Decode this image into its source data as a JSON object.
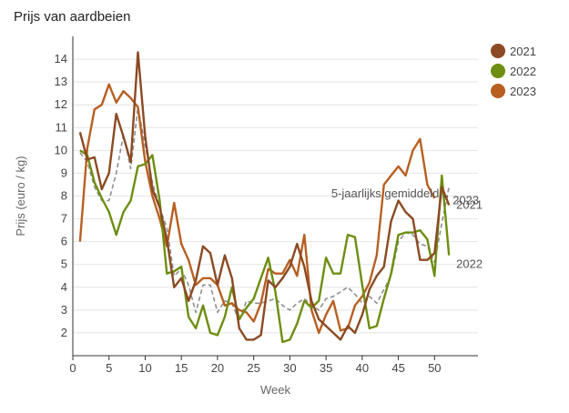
{
  "chart_data": {
    "type": "line",
    "title": "Prijs van aardbeien",
    "xlabel": "Week",
    "ylabel": "Prijs (euro / kg)",
    "xlim": [
      0,
      56
    ],
    "ylim": [
      1,
      15
    ],
    "xticks": [
      0,
      5,
      10,
      15,
      20,
      25,
      30,
      35,
      40,
      45,
      50
    ],
    "yticks": [
      2,
      3,
      4,
      5,
      6,
      7,
      8,
      9,
      10,
      11,
      12,
      13,
      14
    ],
    "grid": "horizontal",
    "legend": "right",
    "series": [
      {
        "name": "2021",
        "color": "#8b4a22",
        "x": [
          1,
          2,
          3,
          4,
          5,
          6,
          7,
          8,
          9,
          10,
          11,
          12,
          13,
          14,
          15,
          16,
          17,
          18,
          19,
          20,
          21,
          22,
          23,
          24,
          25,
          26,
          27,
          28,
          29,
          30,
          31,
          32,
          33,
          34,
          35,
          36,
          37,
          38,
          39,
          40,
          41,
          42,
          43,
          44,
          45,
          46,
          47,
          48,
          49,
          50,
          51,
          52
        ],
        "y": [
          10.8,
          9.6,
          9.7,
          8.3,
          9.0,
          11.6,
          10.6,
          9.5,
          14.3,
          10.6,
          8.3,
          7.5,
          6.1,
          4.0,
          4.4,
          3.4,
          4.3,
          5.8,
          5.5,
          4.1,
          5.4,
          4.4,
          2.2,
          1.7,
          1.7,
          1.9,
          4.3,
          4.0,
          4.4,
          4.9,
          5.9,
          4.9,
          3.4,
          2.6,
          2.3,
          2.0,
          1.7,
          2.3,
          2.0,
          2.8,
          3.9,
          4.5,
          4.9,
          6.9,
          7.8,
          7.3,
          7.0,
          5.2,
          5.2,
          5.5,
          8.4,
          7.6
        ]
      },
      {
        "name": "2022",
        "color": "#6d8e10",
        "x": [
          1,
          2,
          3,
          4,
          5,
          6,
          7,
          8,
          9,
          10,
          11,
          12,
          13,
          14,
          15,
          16,
          17,
          18,
          19,
          20,
          21,
          22,
          23,
          24,
          25,
          26,
          27,
          28,
          29,
          30,
          31,
          32,
          33,
          34,
          35,
          36,
          37,
          38,
          39,
          40,
          41,
          42,
          43,
          44,
          45,
          46,
          47,
          48,
          49,
          50,
          51,
          52
        ],
        "y": [
          10.0,
          9.8,
          8.6,
          7.9,
          7.3,
          6.3,
          7.3,
          7.8,
          9.3,
          9.4,
          9.8,
          7.8,
          4.6,
          4.7,
          4.9,
          2.7,
          2.2,
          3.2,
          2.0,
          1.9,
          2.7,
          4.0,
          2.6,
          3.1,
          3.5,
          4.4,
          5.3,
          3.8,
          1.6,
          1.7,
          2.4,
          3.4,
          3.1,
          3.4,
          5.3,
          4.6,
          4.6,
          6.3,
          6.2,
          4.1,
          2.2,
          2.3,
          3.5,
          4.6,
          6.3,
          6.4,
          6.4,
          6.5,
          6.1,
          4.5,
          8.9,
          5.4
        ]
      },
      {
        "name": "2023",
        "color": "#b85f22",
        "x": [
          1,
          2,
          3,
          4,
          5,
          6,
          7,
          8,
          9,
          10,
          11,
          12,
          13,
          14,
          15,
          16,
          17,
          18,
          19,
          20,
          21,
          22,
          23,
          24,
          25,
          26,
          27,
          28,
          29,
          30,
          31,
          32,
          33,
          34,
          35,
          36,
          37,
          38,
          39,
          40,
          41,
          42,
          43,
          44,
          45,
          46,
          47,
          48,
          49,
          50
        ],
        "y": [
          6.0,
          10.1,
          11.8,
          12.0,
          12.9,
          12.1,
          12.6,
          12.3,
          11.9,
          9.5,
          8.0,
          7.0,
          5.8,
          7.7,
          5.9,
          5.2,
          4.1,
          4.4,
          4.4,
          4.1,
          3.2,
          3.3,
          3.0,
          2.9,
          2.5,
          3.3,
          4.8,
          4.6,
          4.6,
          5.2,
          4.5,
          6.3,
          3.0,
          2.0,
          2.8,
          3.4,
          2.1,
          2.2,
          3.2,
          3.6,
          4.2,
          5.4,
          8.5,
          8.9,
          9.3,
          8.9,
          10.0,
          10.5,
          8.5,
          7.9
        ]
      },
      {
        "name": "5-jaarlijks gemiddeld...",
        "color": "#909090",
        "dashed": true,
        "x": [
          1,
          2,
          3,
          4,
          5,
          6,
          7,
          8,
          9,
          10,
          11,
          12,
          13,
          14,
          15,
          16,
          17,
          18,
          19,
          20,
          21,
          22,
          23,
          24,
          25,
          26,
          27,
          28,
          29,
          30,
          31,
          32,
          33,
          34,
          35,
          36,
          37,
          38,
          39,
          40,
          41,
          42,
          43,
          44,
          45,
          46,
          47,
          48,
          49,
          50,
          51,
          52
        ],
        "y": [
          9.9,
          9.5,
          8.4,
          7.8,
          7.8,
          9.0,
          10.7,
          9.2,
          11.9,
          10.2,
          8.6,
          7.5,
          6.6,
          4.5,
          4.8,
          4.1,
          2.9,
          4.1,
          4.1,
          2.9,
          3.4,
          3.3,
          2.5,
          3.4,
          3.3,
          3.3,
          3.4,
          3.5,
          3.2,
          3.0,
          3.3,
          3.5,
          3.2,
          3.0,
          3.5,
          3.6,
          3.8,
          4.0,
          3.7,
          3.3,
          3.6,
          3.3,
          3.9,
          4.5,
          6.0,
          6.4,
          6.3,
          5.9,
          5.8,
          5.1,
          6.8,
          8.4
        ]
      }
    ],
    "annotations": [
      {
        "text": "5-jaarlijks gemiddeld...",
        "x": 52,
        "y": 8.1,
        "anchor": "end",
        "color": "#555555"
      },
      {
        "text": "2023",
        "x": 52.5,
        "y": 7.8,
        "anchor": "start",
        "color": "#b0b0b0"
      },
      {
        "text": "2021",
        "x": 53,
        "y": 7.6,
        "anchor": "start",
        "color": "#555555"
      },
      {
        "text": "2022",
        "x": 53,
        "y": 5.0,
        "anchor": "start",
        "color": "#555555"
      }
    ]
  }
}
